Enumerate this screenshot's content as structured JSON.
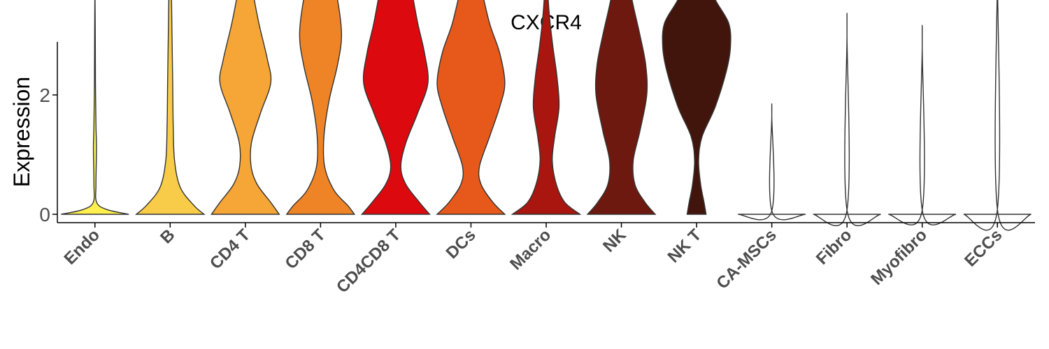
{
  "chart_data": {
    "type": "violin",
    "title": "CXCR4",
    "xlabel": "",
    "ylabel": "Expression",
    "ylim": [
      -0.25,
      5.75
    ],
    "yticks": [
      0,
      2,
      4
    ],
    "grid": false,
    "legend": "none",
    "categories": [
      "Endo",
      "B",
      "CD4 T",
      "CD8 T",
      "CD4CD8 T",
      "DCs",
      "Macro",
      "NK",
      "NK T",
      "CA-MSCs",
      "Fibro",
      "Myofibro",
      "ECCs"
    ],
    "groups": [
      {
        "name": "Endo",
        "color": "#FFF050",
        "max": 3.85,
        "profile": [
          [
            0,
            1.0
          ],
          [
            0.08,
            0.35
          ],
          [
            0.2,
            0.05
          ],
          [
            0.5,
            0.03
          ],
          [
            1.1,
            0.045
          ],
          [
            1.5,
            0.03
          ],
          [
            2.2,
            0.015
          ],
          [
            3.0,
            0.01
          ],
          [
            3.85,
            0.0
          ]
        ]
      },
      {
        "name": "B",
        "color": "#F8CC48",
        "max": 4.45,
        "profile": [
          [
            0,
            1.0
          ],
          [
            0.15,
            0.7
          ],
          [
            0.45,
            0.3
          ],
          [
            0.9,
            0.13
          ],
          [
            1.5,
            0.09
          ],
          [
            2.2,
            0.075
          ],
          [
            3.0,
            0.055
          ],
          [
            3.6,
            0.04
          ],
          [
            4.2,
            0.015
          ],
          [
            4.45,
            0.0
          ]
        ]
      },
      {
        "name": "CD4 T",
        "color": "#F5A637",
        "max": 5.3,
        "profile": [
          [
            0,
            1.0
          ],
          [
            0.2,
            0.75
          ],
          [
            0.5,
            0.35
          ],
          [
            0.8,
            0.17
          ],
          [
            1.2,
            0.18
          ],
          [
            1.7,
            0.45
          ],
          [
            2.2,
            0.75
          ],
          [
            2.6,
            0.65
          ],
          [
            3.2,
            0.4
          ],
          [
            3.8,
            0.2
          ],
          [
            4.3,
            0.07
          ],
          [
            5.3,
            0.0
          ]
        ]
      },
      {
        "name": "CD8 T",
        "color": "#EF8427",
        "max": 5.6,
        "profile": [
          [
            0,
            1.0
          ],
          [
            0.15,
            0.8
          ],
          [
            0.4,
            0.4
          ],
          [
            0.8,
            0.12
          ],
          [
            1.3,
            0.1
          ],
          [
            1.9,
            0.25
          ],
          [
            2.5,
            0.5
          ],
          [
            3.0,
            0.62
          ],
          [
            3.6,
            0.5
          ],
          [
            4.2,
            0.25
          ],
          [
            4.8,
            0.08
          ],
          [
            5.6,
            0.0
          ]
        ]
      },
      {
        "name": "CD4CD8 T",
        "color": "#DC0A0E",
        "max": 4.7,
        "profile": [
          [
            0,
            1.0
          ],
          [
            0.2,
            0.7
          ],
          [
            0.5,
            0.3
          ],
          [
            0.8,
            0.15
          ],
          [
            1.2,
            0.3
          ],
          [
            1.7,
            0.65
          ],
          [
            2.2,
            0.95
          ],
          [
            2.7,
            0.85
          ],
          [
            3.2,
            0.65
          ],
          [
            3.8,
            0.45
          ],
          [
            4.3,
            0.25
          ],
          [
            4.6,
            0.08
          ],
          [
            4.7,
            0.0
          ]
        ]
      },
      {
        "name": "DCs",
        "color": "#E6591B",
        "max": 4.9,
        "profile": [
          [
            0,
            1.0
          ],
          [
            0.2,
            0.65
          ],
          [
            0.5,
            0.3
          ],
          [
            0.8,
            0.25
          ],
          [
            1.3,
            0.55
          ],
          [
            1.8,
            0.85
          ],
          [
            2.2,
            1.0
          ],
          [
            2.7,
            0.85
          ],
          [
            3.2,
            0.55
          ],
          [
            3.8,
            0.3
          ],
          [
            4.3,
            0.1
          ],
          [
            4.6,
            0.04
          ],
          [
            4.9,
            0.0
          ]
        ]
      },
      {
        "name": "Macro",
        "color": "#A8160F",
        "max": 4.6,
        "profile": [
          [
            0,
            1.0
          ],
          [
            0.2,
            0.55
          ],
          [
            0.5,
            0.3
          ],
          [
            0.9,
            0.18
          ],
          [
            1.3,
            0.25
          ],
          [
            1.8,
            0.38
          ],
          [
            2.3,
            0.32
          ],
          [
            2.8,
            0.2
          ],
          [
            3.3,
            0.1
          ],
          [
            3.8,
            0.04
          ],
          [
            4.6,
            0.0
          ]
        ]
      },
      {
        "name": "NK",
        "color": "#6E190F",
        "max": 5.45,
        "profile": [
          [
            0,
            1.0
          ],
          [
            0.2,
            0.7
          ],
          [
            0.5,
            0.4
          ],
          [
            0.9,
            0.35
          ],
          [
            1.4,
            0.55
          ],
          [
            2.0,
            0.75
          ],
          [
            2.5,
            0.72
          ],
          [
            3.0,
            0.55
          ],
          [
            3.5,
            0.35
          ],
          [
            4.0,
            0.18
          ],
          [
            4.6,
            0.07
          ],
          [
            5.45,
            0.0
          ]
        ]
      },
      {
        "name": "NK T",
        "color": "#42150C",
        "max": 4.2,
        "profile": [
          [
            0,
            0.28
          ],
          [
            0.2,
            0.22
          ],
          [
            0.5,
            0.12
          ],
          [
            0.9,
            0.06
          ],
          [
            1.3,
            0.16
          ],
          [
            1.8,
            0.55
          ],
          [
            2.4,
            0.88
          ],
          [
            2.8,
            1.0
          ],
          [
            3.2,
            0.95
          ],
          [
            3.6,
            0.55
          ],
          [
            3.95,
            0.35
          ],
          [
            4.2,
            0.35
          ]
        ]
      },
      {
        "name": "CA-MSCs",
        "color": "#FFFFFF",
        "max": 1.65,
        "profile": [
          [
            0,
            1.0
          ],
          [
            0.04,
            0.01
          ],
          [
            1.65,
            0.0
          ]
        ]
      },
      {
        "name": "Fibro",
        "color": "#FFFFFF",
        "max": 3.0,
        "profile": [
          [
            0,
            1.0
          ],
          [
            0.04,
            0.01
          ],
          [
            3.0,
            0.0
          ]
        ]
      },
      {
        "name": "Myofibro",
        "color": "#FFFFFF",
        "max": 2.82,
        "profile": [
          [
            0,
            1.0
          ],
          [
            0.04,
            0.01
          ],
          [
            2.82,
            0.0
          ]
        ]
      },
      {
        "name": "ECCs",
        "color": "#FFFFFF",
        "max": 4.02,
        "profile": [
          [
            0,
            1.0
          ],
          [
            0.04,
            0.01
          ],
          [
            4.02,
            0.0
          ]
        ]
      }
    ]
  }
}
